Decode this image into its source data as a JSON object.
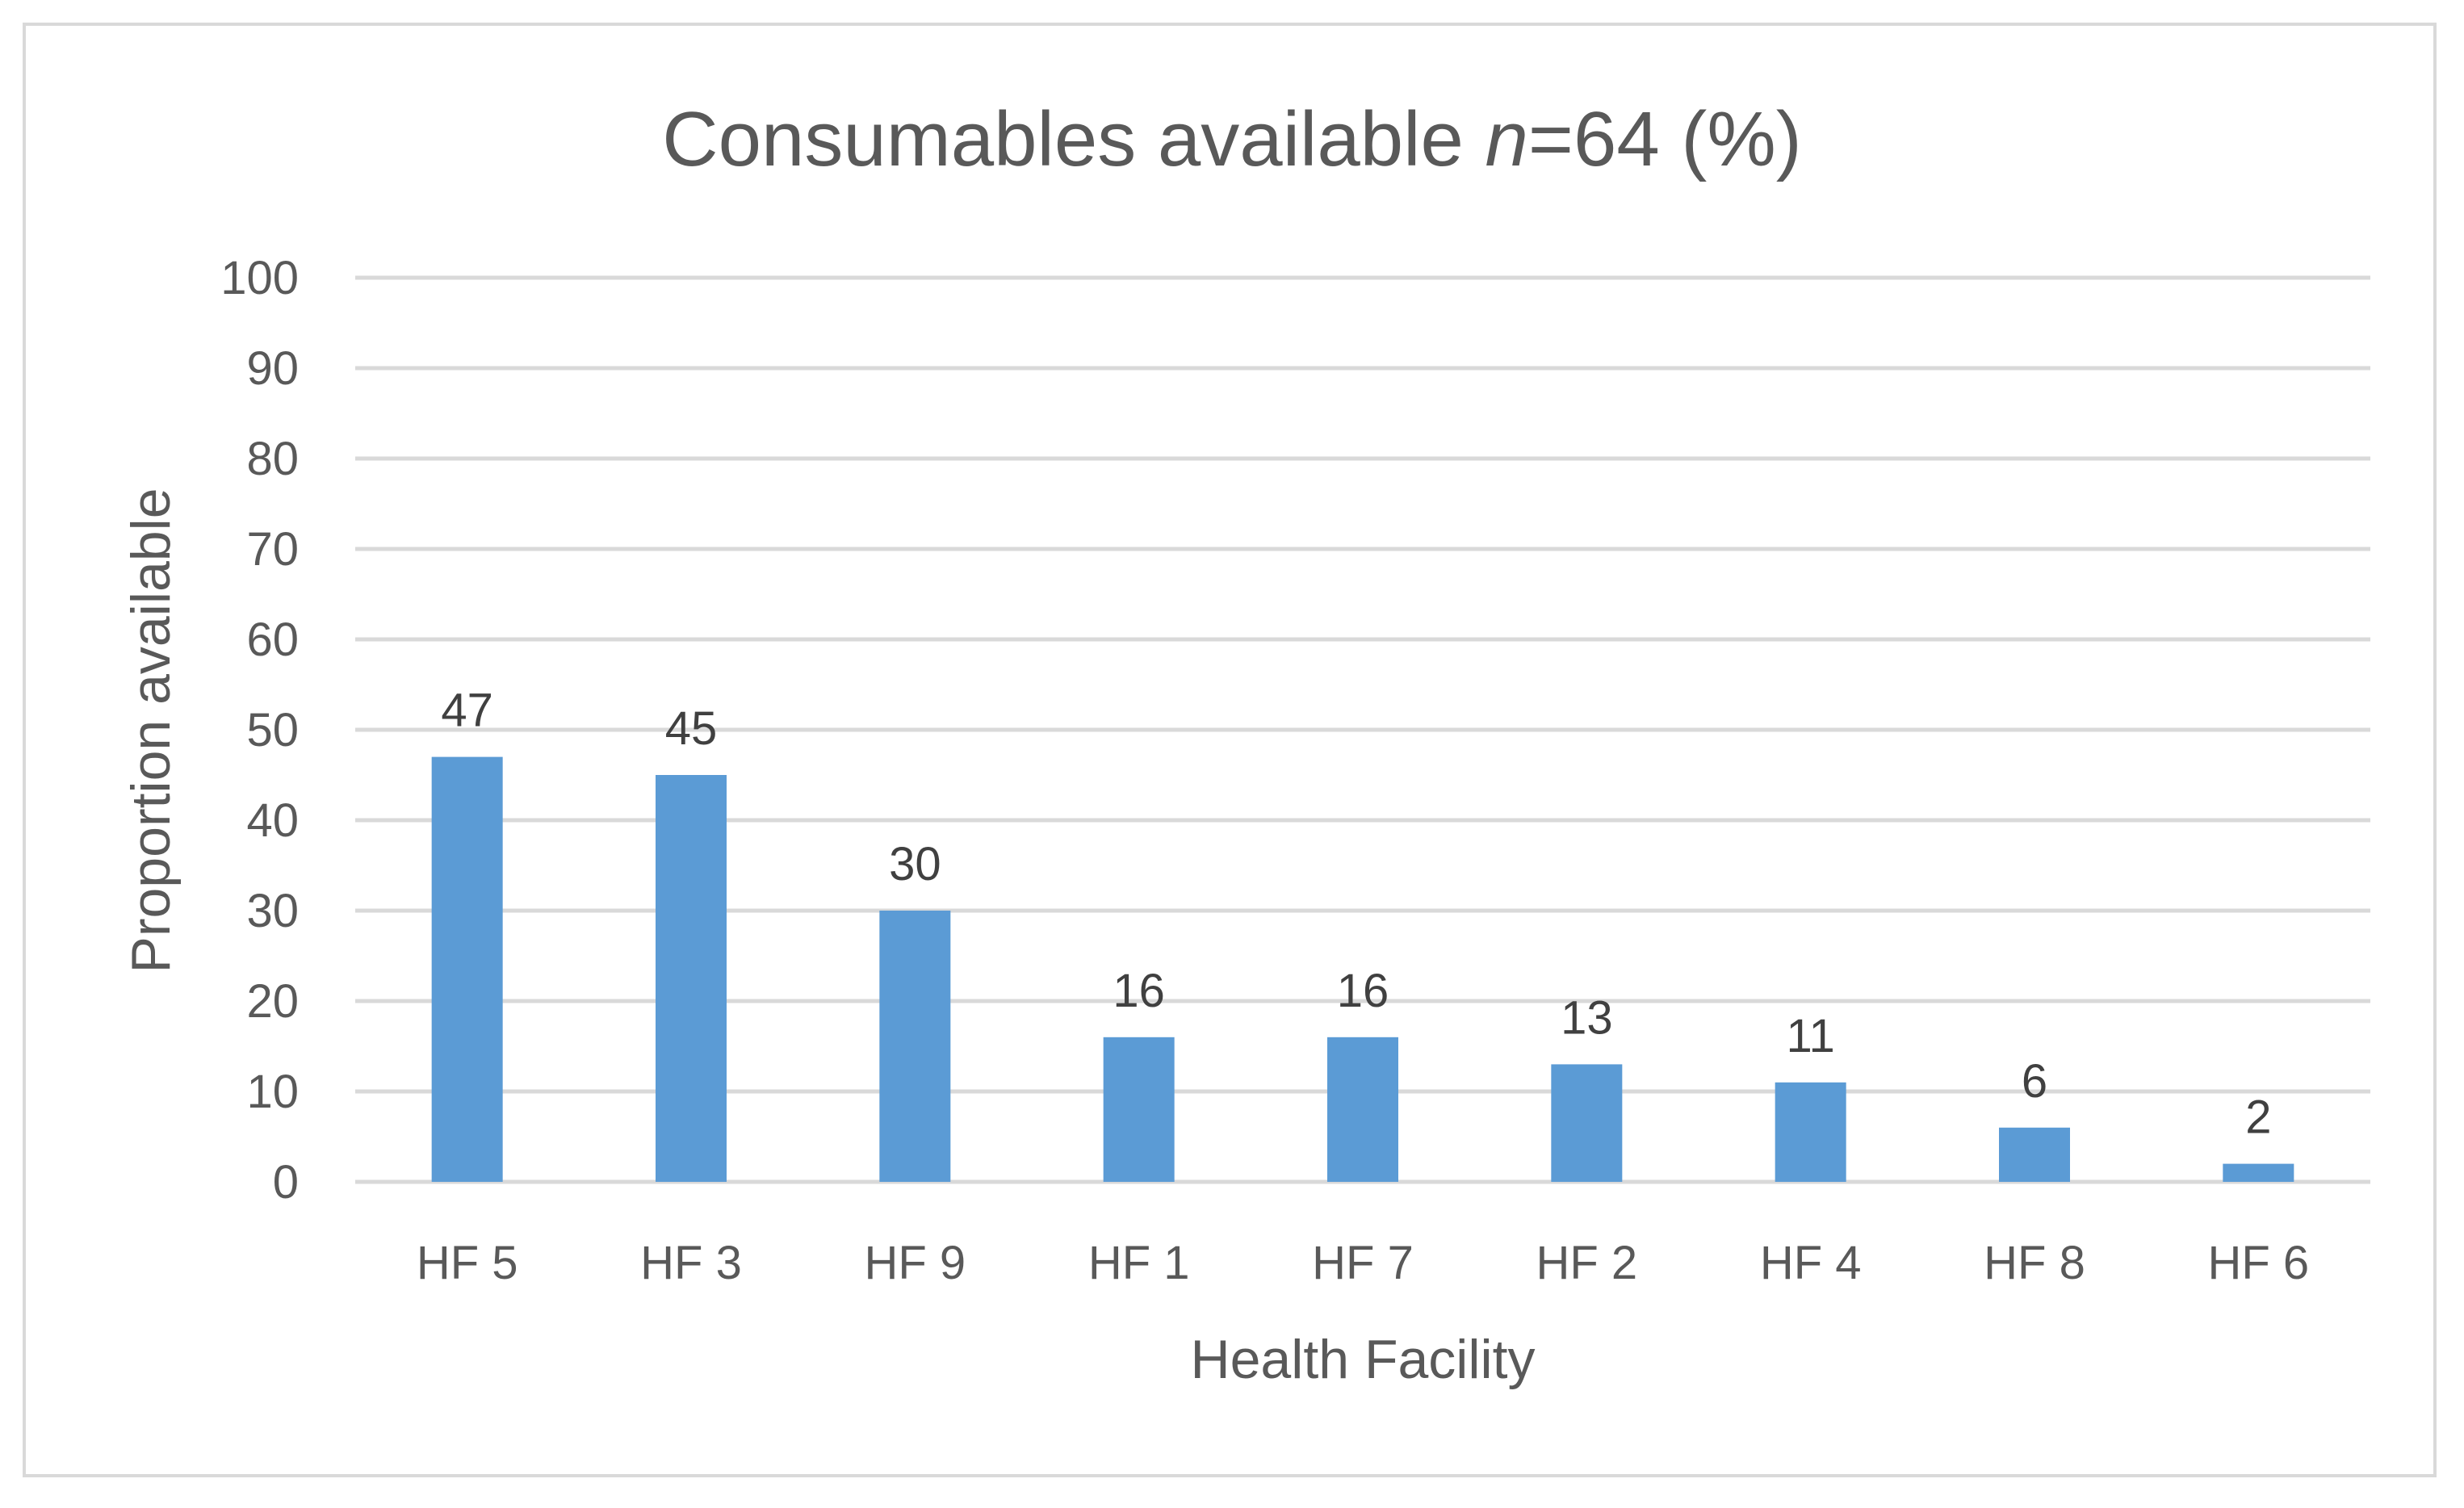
{
  "chart_data": {
    "type": "bar",
    "title": {
      "prefix": "Consumables available ",
      "italic": "n",
      "suffix": "=64 (%)"
    },
    "xlabel": "Health Facility",
    "ylabel": "Proportion available",
    "categories": [
      "HF 5",
      "HF 3",
      "HF 9",
      "HF 1",
      "HF 7",
      "HF 2",
      "HF 4",
      "HF 8",
      "HF 6"
    ],
    "values": [
      47,
      45,
      30,
      16,
      16,
      13,
      11,
      6,
      2
    ],
    "data_labels": [
      "47",
      "45",
      "30",
      "16",
      "16",
      "13",
      "11",
      "6",
      "2"
    ],
    "ylim": [
      0,
      100
    ],
    "yticks": [
      "0",
      "10",
      "20",
      "30",
      "40",
      "50",
      "60",
      "70",
      "80",
      "90",
      "100"
    ],
    "grid": true,
    "legend": "none",
    "bar_color": "#5b9bd5"
  }
}
